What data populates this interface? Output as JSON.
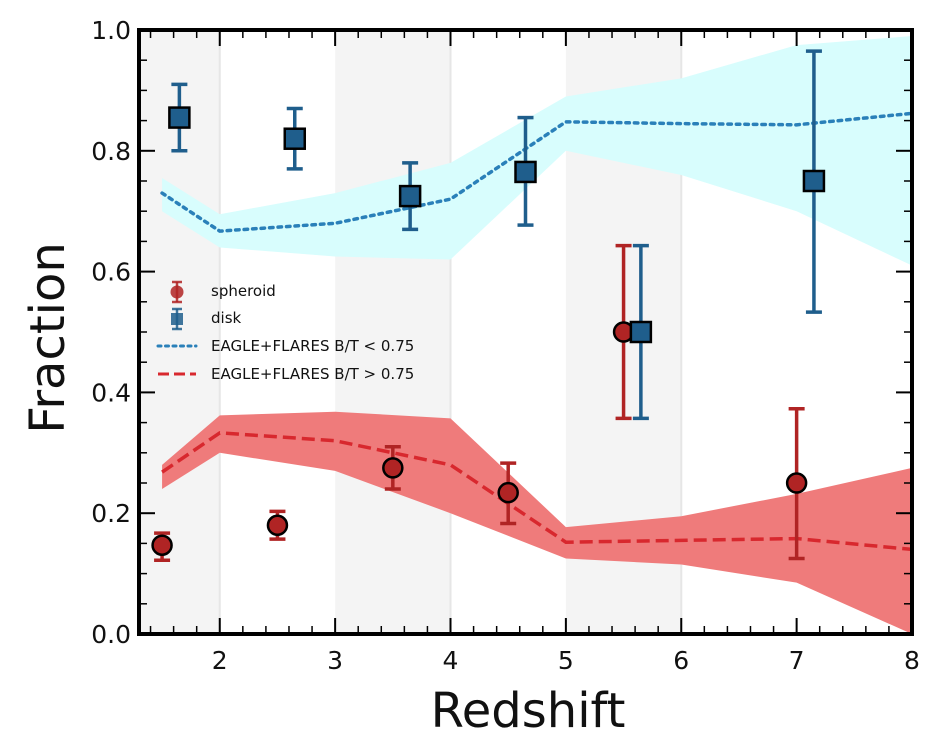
{
  "chart_data": {
    "type": "scatter",
    "xlabel": "Redshift",
    "ylabel": "Fraction",
    "xlim": [
      1.3,
      8.0
    ],
    "ylim": [
      0.0,
      1.0
    ],
    "xticks": [
      2,
      3,
      4,
      5,
      6,
      7,
      8
    ],
    "xtick_labels": [
      "2",
      "3",
      "4",
      "5",
      "6",
      "7",
      "8"
    ],
    "yticks": [
      0.0,
      0.2,
      0.4,
      0.6,
      0.8,
      1.0
    ],
    "ytick_labels": [
      "0.0",
      "0.2",
      "0.4",
      "0.6",
      "0.8",
      "1.0"
    ],
    "shaded_bins": [
      [
        1.3,
        2.0
      ],
      [
        3.0,
        4.0
      ],
      [
        5.0,
        6.0
      ]
    ],
    "colors": {
      "spheroid": "#b02424",
      "disk": "#1f5e8c",
      "disk_band": "#d8fdfd",
      "spheroid_band": "#ef7b7b",
      "disk_line": "#2a80b9",
      "spheroid_line": "#d8282e",
      "shade": "#f4f4f4"
    },
    "series": [
      {
        "name": "spheroid",
        "kind": "points",
        "marker": "circle",
        "x": [
          1.5,
          2.5,
          3.5,
          4.5,
          5.5,
          7.0
        ],
        "y": [
          0.147,
          0.18,
          0.275,
          0.234,
          0.5,
          0.25
        ],
        "yerr_low": [
          0.122,
          0.157,
          0.24,
          0.183,
          0.357,
          0.125
        ],
        "yerr_high": [
          0.167,
          0.203,
          0.31,
          0.283,
          0.643,
          0.373
        ]
      },
      {
        "name": "disk",
        "kind": "points",
        "marker": "square",
        "x": [
          1.65,
          2.65,
          3.65,
          4.65,
          5.65,
          7.15
        ],
        "y": [
          0.855,
          0.82,
          0.725,
          0.765,
          0.5,
          0.75
        ],
        "yerr_low": [
          0.8,
          0.77,
          0.67,
          0.677,
          0.357,
          0.533
        ],
        "yerr_high": [
          0.91,
          0.87,
          0.78,
          0.855,
          0.643,
          0.965
        ]
      },
      {
        "name": "EAGLE+FLARES B/T < 0.75",
        "kind": "line",
        "style": "dotted",
        "x": [
          1.5,
          2.0,
          3.0,
          4.0,
          5.0,
          6.0,
          7.0,
          8.0
        ],
        "y": [
          0.73,
          0.667,
          0.68,
          0.72,
          0.848,
          0.845,
          0.843,
          0.862
        ],
        "band_low": [
          0.7,
          0.64,
          0.625,
          0.62,
          0.8,
          0.76,
          0.7,
          0.61
        ],
        "band_high": [
          0.755,
          0.695,
          0.73,
          0.78,
          0.89,
          0.92,
          0.975,
          0.99
        ]
      },
      {
        "name": "EAGLE+FLARES B/T > 0.75",
        "kind": "line",
        "style": "dashed",
        "x": [
          1.5,
          2.0,
          3.0,
          4.0,
          5.0,
          6.0,
          7.0,
          8.0
        ],
        "y": [
          0.268,
          0.333,
          0.32,
          0.28,
          0.152,
          0.155,
          0.158,
          0.14
        ],
        "band_low": [
          0.24,
          0.3,
          0.27,
          0.2,
          0.125,
          0.115,
          0.085,
          0.0
        ],
        "band_high": [
          0.28,
          0.362,
          0.368,
          0.357,
          0.177,
          0.195,
          0.232,
          0.275
        ]
      }
    ],
    "legend": {
      "position": "center-left",
      "entries": [
        "spheroid",
        "disk",
        "EAGLE+FLARES B/T < 0.75",
        "EAGLE+FLARES B/T > 0.75"
      ]
    }
  }
}
